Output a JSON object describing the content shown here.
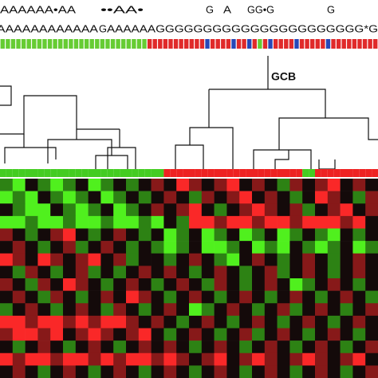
{
  "labels": {
    "row1": [
      "AAAAAA•AA",
      "••AA•",
      "G",
      "A",
      "GG•G",
      "G"
    ],
    "row2": [
      "AAAAAAAAAAAA",
      "G",
      "AAAAAAGGGGGGGGGGGGGGGGGGGGGG*G"
    ],
    "cluster": "GCB"
  },
  "heatmap": {
    "values": [
      [
        -1,
        -2,
        0,
        -1,
        -2,
        -1,
        0,
        -2,
        -1,
        0,
        -1,
        0,
        1,
        0,
        2,
        1,
        0,
        1,
        2,
        0,
        1,
        0,
        -1,
        1,
        0,
        1,
        2,
        0,
        1,
        0
      ],
      [
        -2,
        -1,
        -2,
        0,
        -1,
        -2,
        -1,
        0,
        -2,
        -1,
        0,
        -1,
        0,
        1,
        0,
        -1,
        1,
        0,
        1,
        2,
        0,
        1,
        0,
        -1,
        0,
        2,
        1,
        0,
        -1,
        1
      ],
      [
        0,
        -1,
        -2,
        -2,
        0,
        -1,
        -2,
        -1,
        0,
        -2,
        -1,
        0,
        1,
        0,
        1,
        2,
        0,
        -1,
        0,
        1,
        2,
        1,
        0,
        1,
        -1,
        0,
        1,
        2,
        0,
        1
      ],
      [
        -2,
        -2,
        -1,
        -2,
        -2,
        -1,
        -2,
        -2,
        -1,
        -2,
        -2,
        -1,
        -2,
        0,
        -1,
        2,
        2,
        1,
        2,
        2,
        1,
        2,
        2,
        1,
        2,
        2,
        2,
        1,
        2,
        0
      ],
      [
        1,
        0,
        -1,
        0,
        1,
        2,
        0,
        -1,
        0,
        1,
        0,
        -1,
        0,
        -2,
        -1,
        0,
        -2,
        -1,
        0,
        -2,
        -1,
        0,
        -2,
        -1,
        0,
        -1,
        -2,
        0,
        -1,
        0
      ],
      [
        0,
        1,
        0,
        -1,
        0,
        1,
        -1,
        0,
        1,
        0,
        -1,
        0,
        -1,
        -2,
        -1,
        0,
        -2,
        -2,
        -1,
        0,
        -2,
        -1,
        -2,
        0,
        -1,
        -2,
        -1,
        0,
        -2,
        -1
      ],
      [
        2,
        1,
        0,
        2,
        1,
        0,
        1,
        2,
        0,
        1,
        -1,
        0,
        0,
        -1,
        0,
        1,
        0,
        -1,
        -2,
        0,
        1,
        0,
        -1,
        0,
        1,
        0,
        -1,
        0,
        1,
        0
      ],
      [
        0,
        -1,
        1,
        0,
        -1,
        0,
        1,
        -1,
        0,
        -1,
        0,
        1,
        0,
        1,
        0,
        -1,
        0,
        1,
        0,
        -1,
        0,
        1,
        -1,
        0,
        1,
        0,
        -1,
        0,
        1,
        0
      ],
      [
        1,
        0,
        -1,
        1,
        0,
        2,
        1,
        0,
        -1,
        0,
        1,
        0,
        -1,
        0,
        1,
        0,
        -1,
        1,
        0,
        -1,
        0,
        1,
        0,
        -2,
        -1,
        0,
        1,
        0,
        -1,
        0
      ],
      [
        0,
        1,
        0,
        -1,
        1,
        0,
        -1,
        0,
        1,
        0,
        2,
        1,
        0,
        -1,
        0,
        1,
        0,
        -1,
        0,
        1,
        0,
        -1,
        0,
        1,
        0,
        -1,
        0,
        1,
        0,
        -1
      ],
      [
        -1,
        0,
        1,
        0,
        -1,
        0,
        1,
        0,
        -1,
        1,
        0,
        -1,
        0,
        1,
        0,
        -2,
        -1,
        0,
        1,
        0,
        -1,
        0,
        1,
        -1,
        0,
        1,
        0,
        -1,
        0,
        1
      ],
      [
        2,
        2,
        1,
        2,
        2,
        1,
        2,
        1,
        2,
        2,
        1,
        0,
        1,
        0,
        -1,
        0,
        1,
        0,
        -1,
        0,
        1,
        0,
        -1,
        0,
        1,
        0,
        -1,
        0,
        1,
        0
      ],
      [
        1,
        2,
        2,
        1,
        2,
        0,
        1,
        2,
        1,
        0,
        1,
        2,
        0,
        -1,
        0,
        1,
        0,
        -1,
        0,
        1,
        -1,
        0,
        1,
        0,
        -1,
        0,
        1,
        0,
        -1,
        0
      ],
      [
        0,
        -1,
        0,
        1,
        0,
        -1,
        0,
        1,
        0,
        -1,
        0,
        1,
        0,
        1,
        0,
        -1,
        0,
        1,
        0,
        -1,
        0,
        1,
        0,
        -1,
        0,
        1,
        0,
        -1,
        0,
        1
      ],
      [
        2,
        1,
        2,
        2,
        1,
        2,
        2,
        1,
        2,
        1,
        2,
        2,
        1,
        2,
        1,
        0,
        1,
        2,
        0,
        1,
        2,
        1,
        0,
        1,
        2,
        1,
        0,
        1,
        2,
        0
      ],
      [
        0,
        1,
        0,
        -1,
        0,
        1,
        0,
        -1,
        0,
        1,
        0,
        -1,
        0,
        1,
        0,
        -1,
        0,
        1,
        0,
        -1,
        0,
        1,
        0,
        -1,
        0,
        1,
        0,
        -1,
        0,
        1
      ]
    ]
  }
}
